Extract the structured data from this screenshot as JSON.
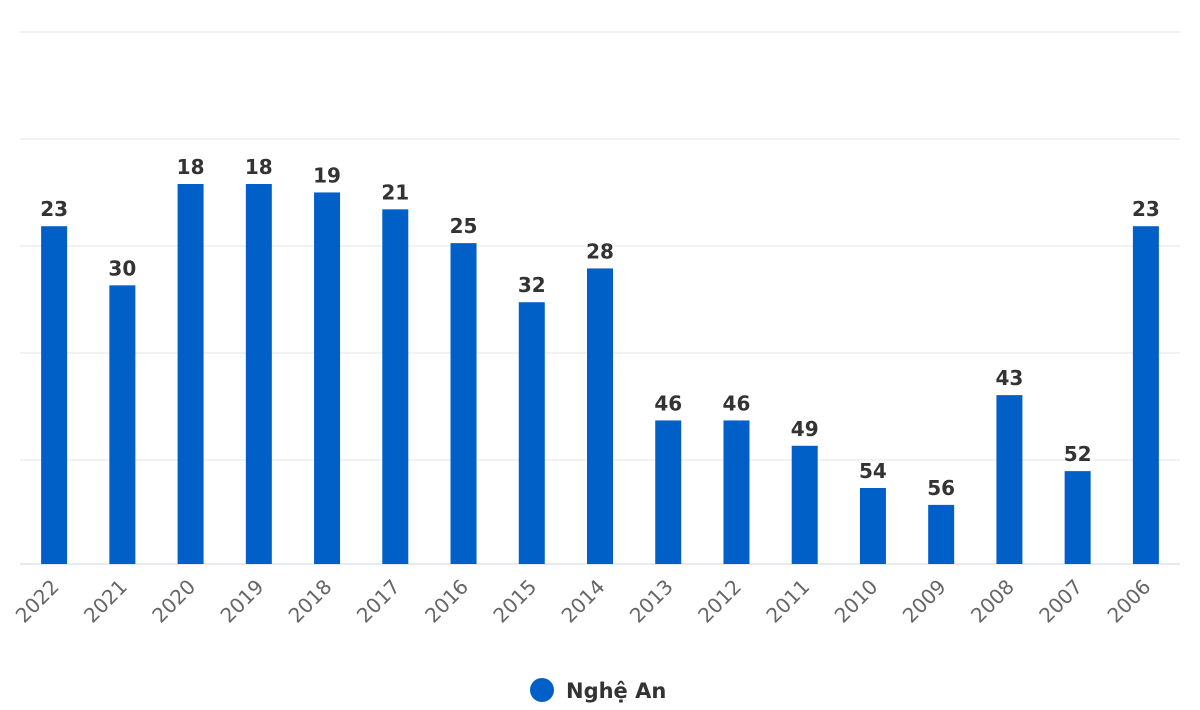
{
  "chart_data": {
    "type": "bar",
    "categories": [
      "2022",
      "2021",
      "2020",
      "2019",
      "2018",
      "2017",
      "2016",
      "2015",
      "2014",
      "2013",
      "2012",
      "2011",
      "2010",
      "2009",
      "2008",
      "2007",
      "2006"
    ],
    "series": [
      {
        "name": "Nghệ An",
        "color": "#0060C8",
        "values": [
          23,
          30,
          18,
          18,
          19,
          21,
          25,
          32,
          28,
          46,
          46,
          49,
          54,
          56,
          43,
          52,
          23
        ]
      }
    ],
    "y_axis": {
      "reversed": true,
      "min": 0,
      "max": 63,
      "grid": true,
      "tick_labels_visible": false
    },
    "legend": {
      "position": "bottom-center"
    },
    "data_labels": true
  }
}
